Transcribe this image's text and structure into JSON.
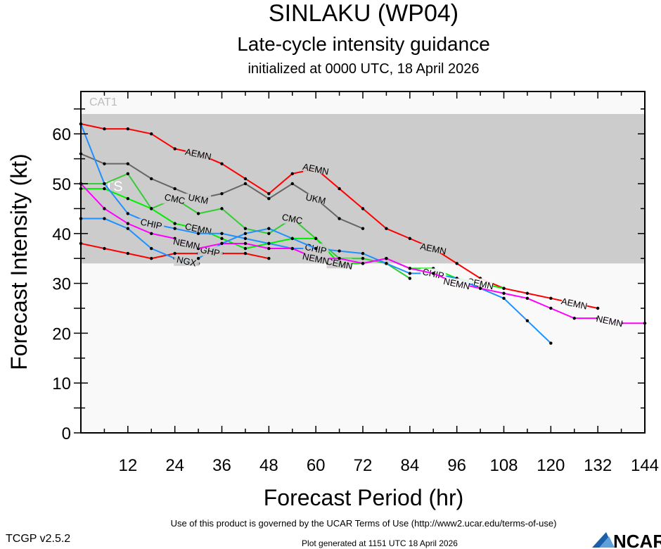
{
  "chart_data": {
    "type": "line",
    "title": "SINLAKU (WP04)",
    "subtitle": "Late-cycle intensity guidance",
    "subtitle2": "initialized at 0000 UTC, 18 April 2026",
    "xlabel": "Forecast Period (hr)",
    "ylabel": "Forecast Intensity (kt)",
    "xlim": [
      0,
      144
    ],
    "ylim": [
      0,
      68.5
    ],
    "xticks": [
      12,
      24,
      36,
      48,
      60,
      72,
      84,
      96,
      108,
      120,
      132,
      144
    ],
    "yticks": [
      0,
      10,
      20,
      30,
      40,
      50,
      60
    ],
    "grid": false,
    "bands": [
      {
        "label": "TS",
        "from": 34,
        "to": 64,
        "color": "#cccccc"
      },
      {
        "label": "CAT1",
        "from": 64,
        "to": 68.5,
        "color": "#f9f9f9"
      }
    ],
    "series": [
      {
        "name": "AEMN",
        "color": "#ff0000",
        "x": [
          0,
          6,
          12,
          18,
          24,
          30,
          36,
          42,
          48,
          54,
          60,
          66,
          72,
          78,
          84,
          90,
          96,
          102,
          108,
          114,
          120,
          126,
          132
        ],
        "values": [
          62,
          61,
          61,
          60,
          57,
          56,
          54,
          51,
          48,
          52,
          53,
          49,
          45,
          41,
          39,
          37,
          34,
          31,
          29,
          28,
          27,
          26,
          25
        ],
        "label_at": [
          30,
          60,
          90,
          126
        ]
      },
      {
        "name": "",
        "color": "#ff0000",
        "x": [
          0,
          6,
          12,
          18,
          24,
          30,
          36,
          42,
          48
        ],
        "values": [
          38,
          37,
          36,
          35,
          36,
          36,
          36,
          36,
          35
        ],
        "label_at": []
      },
      {
        "name": "UKM",
        "color": "#666666",
        "x": [
          0,
          6,
          12,
          18,
          24,
          30,
          36,
          42,
          48,
          54,
          60,
          66,
          72
        ],
        "values": [
          56,
          54,
          54,
          51,
          49,
          47,
          48,
          50,
          47,
          50,
          47,
          43,
          41
        ],
        "label_at": [
          30,
          60
        ]
      },
      {
        "name": "CMC",
        "color": "#33cc33",
        "x": [
          0,
          6,
          12,
          18,
          24,
          30,
          36,
          42,
          48,
          54,
          60,
          66,
          72,
          78,
          84
        ],
        "values": [
          50,
          50,
          52,
          45,
          47,
          44,
          45,
          41,
          40,
          43,
          39,
          35,
          35,
          34,
          31
        ],
        "label_at": [
          24,
          54
        ]
      },
      {
        "name": "CEMN",
        "color": "#00ee00",
        "x": [
          0,
          6,
          12,
          18,
          24,
          30,
          36,
          42,
          48,
          54,
          60,
          66,
          72,
          78,
          84,
          90,
          96,
          102,
          108
        ],
        "values": [
          49,
          49,
          47,
          45,
          42,
          41,
          39,
          37,
          38,
          39,
          39,
          34,
          34,
          35,
          33,
          33,
          31,
          30,
          29
        ],
        "label_at": [
          30,
          66,
          102
        ]
      },
      {
        "name": "CHIP",
        "color": "#1e90ff",
        "x": [
          0,
          6,
          12,
          18,
          24,
          30,
          36,
          42,
          48,
          54,
          60,
          66,
          72,
          78,
          84,
          90,
          96,
          102,
          108,
          114,
          120
        ],
        "values": [
          62,
          50,
          44,
          42,
          41,
          40,
          40,
          39,
          38,
          37,
          37,
          36.5,
          36,
          34,
          32,
          32,
          31,
          29,
          27,
          22.5,
          18
        ],
        "label_at": [
          18,
          60,
          90
        ]
      },
      {
        "name": "NGX",
        "color": "#1e90ff",
        "x": [
          0,
          6,
          12,
          18,
          24,
          30
        ],
        "values": [
          43,
          43,
          41,
          37,
          35,
          34
        ],
        "label_at": [
          27
        ]
      },
      {
        "name": "GHP",
        "color": "#1e90ff",
        "x": [
          30,
          36,
          42,
          48,
          54,
          60
        ],
        "values": [
          35,
          38,
          40,
          41,
          39,
          37
        ],
        "label_at": [
          33
        ]
      },
      {
        "name": "NEMN",
        "color": "#ff00ff",
        "x": [
          0,
          6,
          12,
          18,
          24,
          30,
          36,
          42,
          48,
          54,
          60,
          66,
          72,
          78,
          84,
          90,
          96,
          102,
          108,
          114,
          120,
          126,
          132,
          138,
          144
        ],
        "values": [
          50,
          45,
          42,
          40,
          39,
          37,
          38,
          38,
          37,
          37,
          35,
          35,
          34,
          35,
          33,
          32,
          30,
          29,
          28,
          27,
          25,
          23,
          23,
          22,
          22
        ],
        "label_at": [
          27,
          60,
          96,
          135
        ]
      }
    ]
  },
  "footer": {
    "terms": "Use of this product is governed by the UCAR Terms of Use (http://www2.ucar.edu/terms-of-use)",
    "version": "TCGP v2.5.2",
    "generated": "Plot generated at 1151 UTC   18 April 2026",
    "logo": "NCAR"
  }
}
